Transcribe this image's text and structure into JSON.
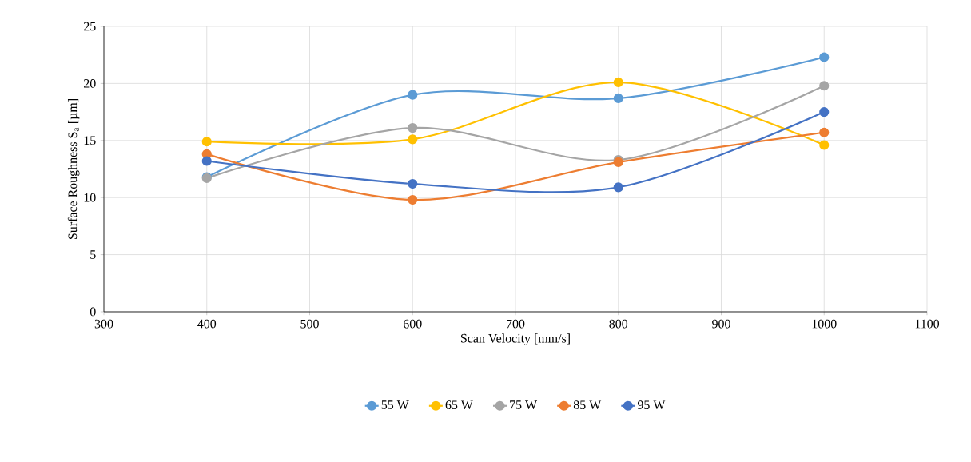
{
  "chart_data": {
    "type": "line",
    "xlabel": "Scan Velocity [mm/s]",
    "ylabel": "Surface Roughness S$_{a}$ [µm]",
    "x": [
      400,
      600,
      800,
      1000
    ],
    "series": [
      {
        "name": "55 W",
        "color": "#5b9bd5",
        "values": [
          11.8,
          19.0,
          18.7,
          22.3
        ]
      },
      {
        "name": "65 W",
        "color": "#ffc000",
        "values": [
          14.9,
          15.1,
          20.1,
          14.6
        ]
      },
      {
        "name": "75 W",
        "color": "#a5a5a5",
        "values": [
          11.7,
          16.1,
          13.3,
          19.8
        ]
      },
      {
        "name": "85 W",
        "color": "#ed7d31",
        "values": [
          13.8,
          9.8,
          13.1,
          15.7
        ]
      },
      {
        "name": "95 W",
        "color": "#4472c4",
        "values": [
          13.2,
          11.2,
          10.9,
          17.5
        ]
      }
    ],
    "xlim": [
      300,
      1100
    ],
    "xticks": [
      300,
      400,
      500,
      600,
      700,
      800,
      900,
      1000,
      1100
    ],
    "ylim": [
      0,
      25
    ],
    "yticks": [
      0,
      5,
      10,
      15,
      20,
      25
    ],
    "grid": true,
    "legend": "bottom",
    "marker": "circle",
    "line_style": "solid"
  }
}
